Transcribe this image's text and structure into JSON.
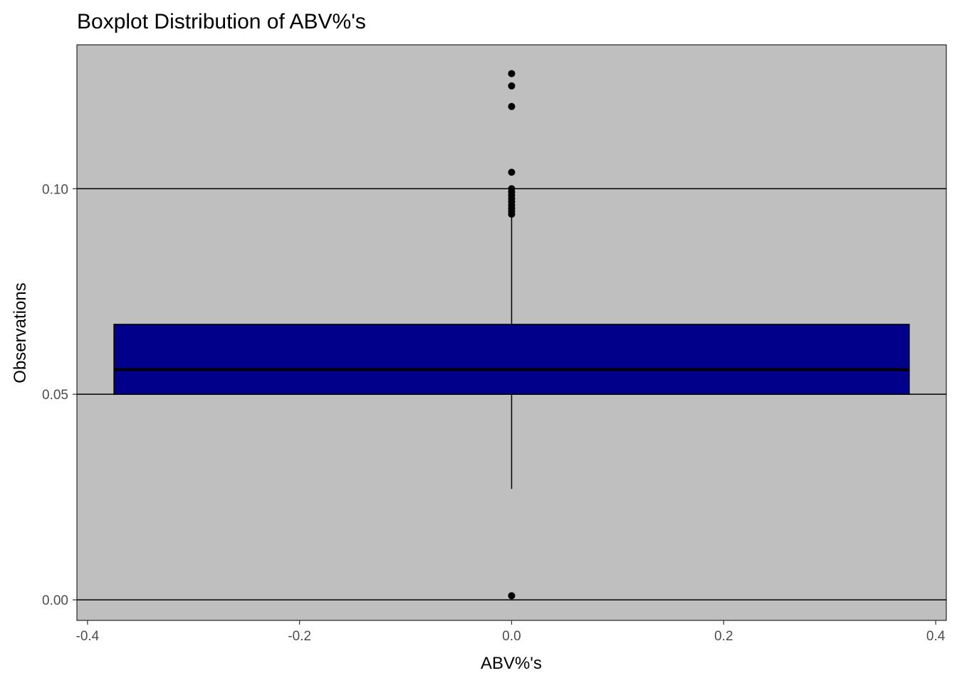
{
  "chart_data": {
    "type": "boxplot",
    "title": "Boxplot Distribution of ABV%'s",
    "xlabel": "ABV%'s",
    "ylabel": "Observations",
    "xlim": [
      -0.41,
      0.41
    ],
    "ylim": [
      -0.005,
      0.135
    ],
    "x_ticks": [
      -0.4,
      -0.2,
      0.0,
      0.2,
      0.4
    ],
    "x_tick_labels": [
      "-0.4",
      "-0.2",
      "0.0",
      "0.2",
      "0.4"
    ],
    "y_ticks": [
      0.0,
      0.05,
      0.1
    ],
    "y_tick_labels": [
      "0.00",
      "0.05",
      "0.10"
    ],
    "grid": "major horizontal only",
    "panel_background": "#bfbfbf",
    "box": {
      "x_center": 0.0,
      "x_min": -0.375,
      "x_max": 0.375,
      "whisker_low": 0.027,
      "q1": 0.05,
      "median": 0.056,
      "q3": 0.067,
      "whisker_high": 0.093,
      "fill": "#00008b"
    },
    "outliers": [
      0.001,
      0.0938,
      0.0945,
      0.0952,
      0.096,
      0.0968,
      0.0976,
      0.0984,
      0.0992,
      0.1,
      0.104,
      0.12,
      0.125,
      0.128
    ]
  }
}
